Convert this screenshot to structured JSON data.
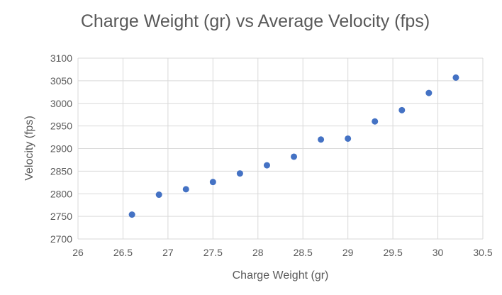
{
  "chart_data": {
    "type": "scatter",
    "title": "Charge Weight (gr) vs Average Velocity (fps)",
    "xlabel": "Charge Weight (gr)",
    "ylabel": "Velocity (fps)",
    "xlim": [
      26,
      30.5
    ],
    "ylim": [
      2700,
      3100
    ],
    "x_ticks": [
      "26",
      "26.5",
      "27",
      "27.5",
      "28",
      "28.5",
      "29",
      "29.5",
      "30",
      "30.5"
    ],
    "y_ticks": [
      "2700",
      "2750",
      "2800",
      "2850",
      "2900",
      "2950",
      "3000",
      "3050",
      "3100"
    ],
    "grid": true,
    "legend": "none",
    "series": [
      {
        "name": "Average Velocity",
        "color": "#4472C4",
        "x": [
          26.6,
          26.9,
          27.2,
          27.5,
          27.8,
          28.1,
          28.4,
          28.7,
          29.0,
          29.3,
          29.6,
          29.9,
          30.2
        ],
        "y": [
          2754,
          2798,
          2810,
          2826,
          2845,
          2863,
          2882,
          2920,
          2922,
          2960,
          2985,
          3023,
          3057
        ]
      }
    ]
  }
}
